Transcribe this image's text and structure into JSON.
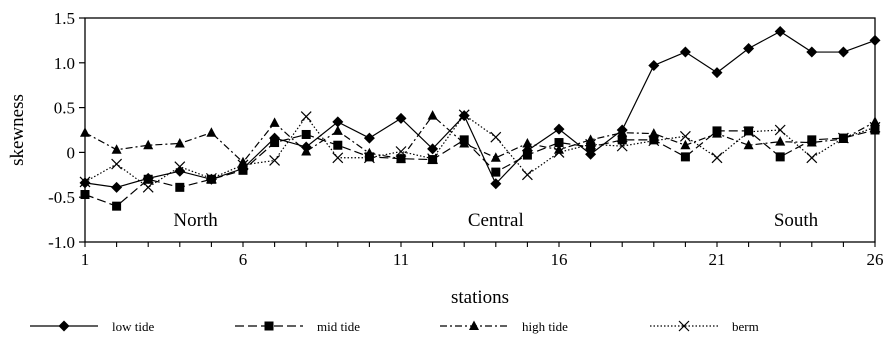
{
  "chart_data": {
    "type": "line",
    "xlabel": "stations",
    "ylabel": "skewness",
    "xlim": [
      1,
      26
    ],
    "ylim": [
      -1.0,
      1.5
    ],
    "x_ticks": [
      1,
      6,
      11,
      16,
      21,
      26
    ],
    "x_tick_labels": [
      "1",
      "6",
      "11",
      "16",
      "21",
      "26"
    ],
    "y_ticks": [
      -1.0,
      -0.5,
      0,
      0.5,
      1.0,
      1.5
    ],
    "y_tick_labels": [
      "-1.0",
      "-0.5",
      "0",
      "0.5",
      "1.0",
      "1.5"
    ],
    "grid": false,
    "legend_position": "bottom",
    "x": [
      1,
      2,
      3,
      4,
      5,
      6,
      7,
      8,
      9,
      10,
      11,
      12,
      13,
      14,
      15,
      16,
      17,
      18,
      19,
      20,
      21,
      22,
      23,
      24,
      25,
      26
    ],
    "annotations": [
      {
        "text": "North",
        "x": 4.5,
        "y": -0.82
      },
      {
        "text": "Central",
        "x": 14.0,
        "y": -0.82
      },
      {
        "text": "South",
        "x": 23.5,
        "y": -0.82
      }
    ],
    "series": [
      {
        "name": "low tide",
        "marker": "diamond",
        "dash": "solid",
        "values": [
          -0.34,
          -0.39,
          -0.29,
          -0.21,
          -0.3,
          -0.18,
          0.16,
          0.06,
          0.34,
          0.16,
          0.38,
          0.04,
          0.41,
          -0.35,
          0.02,
          0.26,
          -0.02,
          0.25,
          0.97,
          1.12,
          0.89,
          1.16,
          1.35,
          1.12,
          1.12,
          1.25
        ]
      },
      {
        "name": "mid tide",
        "marker": "square",
        "dash": "longdash",
        "values": [
          -0.47,
          -0.6,
          -0.3,
          -0.39,
          -0.3,
          -0.2,
          0.11,
          0.2,
          0.08,
          -0.05,
          -0.07,
          -0.08,
          0.14,
          -0.22,
          -0.03,
          0.11,
          0.06,
          0.14,
          0.14,
          -0.05,
          0.24,
          0.24,
          -0.05,
          0.14,
          0.16,
          0.25
        ]
      },
      {
        "name": "high tide",
        "marker": "triangle",
        "dash": "dashdot",
        "values": [
          0.22,
          0.03,
          0.08,
          0.1,
          0.22,
          -0.11,
          0.33,
          0.01,
          0.24,
          -0.01,
          -0.07,
          0.41,
          0.1,
          -0.06,
          0.1,
          0.03,
          0.14,
          0.22,
          0.21,
          0.08,
          0.21,
          0.08,
          0.12,
          0.11,
          0.15,
          0.34
        ]
      },
      {
        "name": "berm",
        "marker": "x",
        "dash": "dotted",
        "values": [
          -0.33,
          -0.13,
          -0.39,
          -0.16,
          -0.29,
          -0.14,
          -0.09,
          0.4,
          -0.06,
          -0.06,
          0.01,
          -0.07,
          0.42,
          0.17,
          -0.25,
          0.0,
          0.09,
          0.07,
          0.13,
          0.18,
          -0.06,
          0.23,
          0.25,
          -0.06,
          0.16,
          0.28
        ]
      }
    ]
  }
}
